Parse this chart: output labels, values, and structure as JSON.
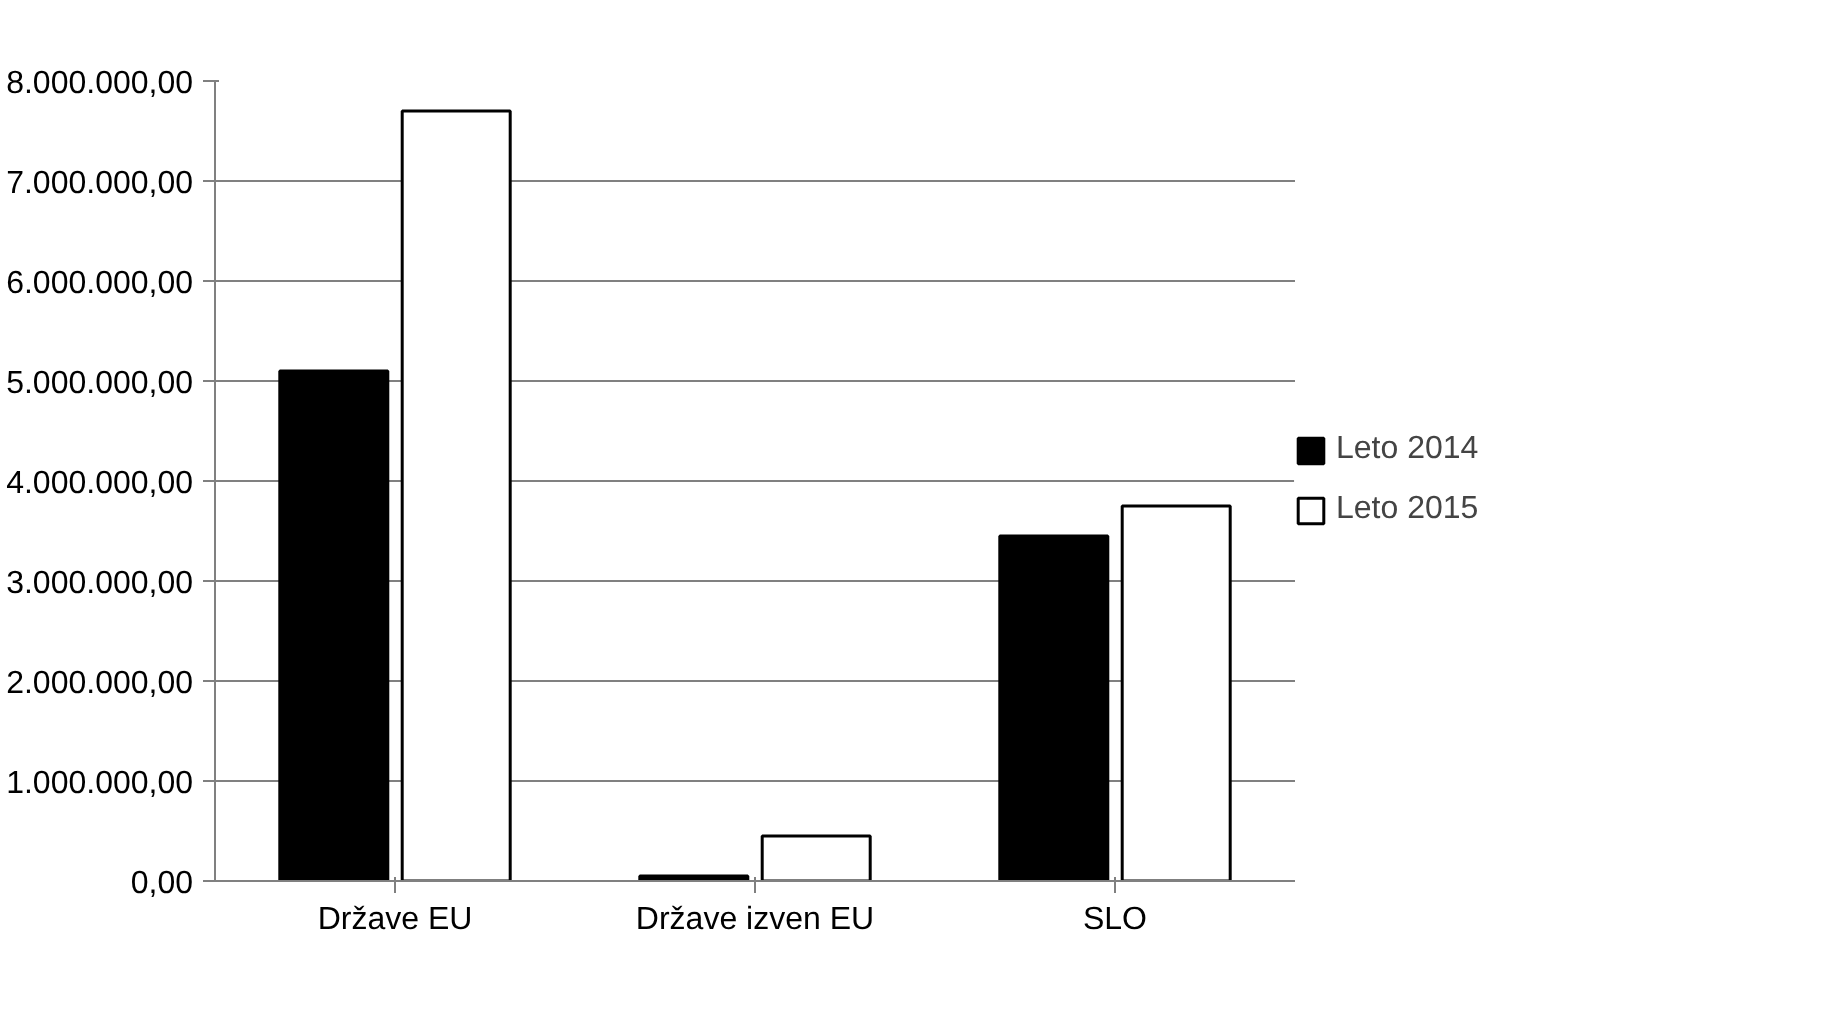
{
  "chart_data": {
    "type": "bar",
    "categories": [
      "Države EU",
      "Države izven EU",
      "SLO"
    ],
    "series": [
      {
        "name": "Leto 2014",
        "color": "#000000",
        "values": [
          5100000,
          50000,
          3450000
        ]
      },
      {
        "name": "Leto 2015",
        "color": "#ffffff",
        "values": [
          7700000,
          450000,
          3750000
        ]
      }
    ],
    "ylim": [
      0,
      8000000
    ],
    "yticks": [
      {
        "value": 0,
        "label": "0,00"
      },
      {
        "value": 1000000,
        "label": "1.000.000,00"
      },
      {
        "value": 2000000,
        "label": "2.000.000,00"
      },
      {
        "value": 3000000,
        "label": "3.000.000,00"
      },
      {
        "value": 4000000,
        "label": "4.000.000,00"
      },
      {
        "value": 5000000,
        "label": "5.000.000,00"
      },
      {
        "value": 6000000,
        "label": "6.000.000,00"
      },
      {
        "value": 7000000,
        "label": "7.000.000,00"
      },
      {
        "value": 8000000,
        "label": "8.000.000,00"
      }
    ],
    "grid": "y",
    "legend": "right"
  }
}
